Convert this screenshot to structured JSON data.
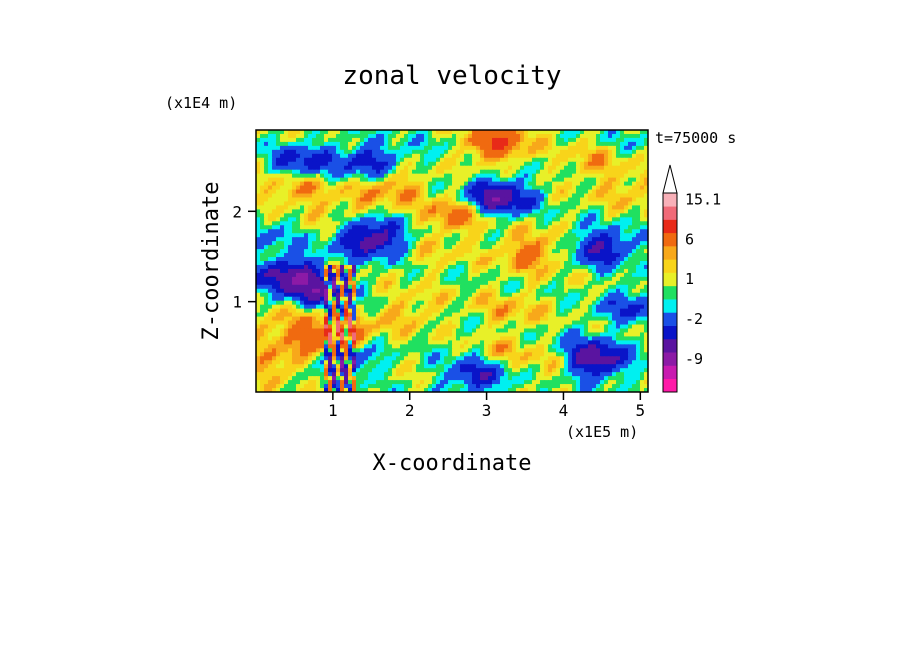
{
  "chart_data": {
    "type": "heatmap",
    "title": "zonal velocity",
    "xlabel": "X-coordinate",
    "ylabel": "Z-coordinate",
    "x_scale_label": "(x1E5 m)",
    "y_scale_label": "(x1E4 m)",
    "time_label": "t=75000 s",
    "xlim": [
      0,
      5.1
    ],
    "ylim": [
      0,
      2.9
    ],
    "x_ticks": [
      {
        "value": 1,
        "label": "1"
      },
      {
        "value": 2,
        "label": "2"
      },
      {
        "value": 3,
        "label": "3"
      },
      {
        "value": 4,
        "label": "4"
      },
      {
        "value": 5,
        "label": "5"
      }
    ],
    "y_ticks": [
      {
        "value": 1,
        "label": "1"
      },
      {
        "value": 2,
        "label": "2"
      }
    ],
    "colorbar": {
      "levels": [
        {
          "color": "#ff1aa8",
          "label": ""
        },
        {
          "color": "#c81ab0",
          "label": ""
        },
        {
          "color": "#8c1aa6",
          "label": "-9"
        },
        {
          "color": "#5a14a0",
          "label": ""
        },
        {
          "color": "#0a14c8",
          "label": ""
        },
        {
          "color": "#1a50e6",
          "label": "-2"
        },
        {
          "color": "#00f0f0",
          "label": ""
        },
        {
          "color": "#20e060",
          "label": ""
        },
        {
          "color": "#e8f028",
          "label": "1"
        },
        {
          "color": "#f8d41a",
          "label": ""
        },
        {
          "color": "#f8a81a",
          "label": ""
        },
        {
          "color": "#f06a10",
          "label": "6"
        },
        {
          "color": "#e82a18",
          "label": ""
        },
        {
          "color": "#f06a78",
          "label": ""
        },
        {
          "color": "#f8b0b8",
          "label": "15.1"
        }
      ]
    },
    "features": [
      {
        "x": 0.6,
        "z": 2.55,
        "value": -5
      },
      {
        "x": 1.5,
        "z": 2.55,
        "value": -5
      },
      {
        "x": 3.15,
        "z": 2.15,
        "value": -8
      },
      {
        "x": 4.5,
        "z": 1.6,
        "value": -6
      },
      {
        "x": 1.5,
        "z": 1.7,
        "value": -8
      },
      {
        "x": 0.45,
        "z": 1.3,
        "value": -7
      },
      {
        "x": 0.75,
        "z": 1.1,
        "value": -6
      },
      {
        "x": 4.9,
        "z": 0.95,
        "value": -4
      },
      {
        "x": 2.6,
        "z": 1.95,
        "value": 4
      },
      {
        "x": 3.1,
        "z": 2.75,
        "value": 6
      },
      {
        "x": 3.6,
        "z": 1.55,
        "value": 4
      },
      {
        "x": 0.5,
        "z": 2.25,
        "value": 3
      },
      {
        "x": 1.8,
        "z": 2.3,
        "value": 3
      },
      {
        "x": 4.4,
        "z": 2.55,
        "value": 2
      },
      {
        "x": 4.9,
        "z": 2.25,
        "value": 2
      },
      {
        "x": 0.3,
        "z": 0.35,
        "value": 3
      },
      {
        "x": 1.05,
        "z": 0.6,
        "value": 8
      },
      {
        "x": 0.4,
        "z": 0.8,
        "value": 3
      },
      {
        "x": 2.0,
        "z": 0.9,
        "value": 2
      },
      {
        "x": 3.9,
        "z": 0.3,
        "value": 2
      },
      {
        "x": 2.9,
        "z": 0.5,
        "value": -1
      },
      {
        "x": 4.2,
        "z": 0.55,
        "value": -1
      },
      {
        "x": 3.3,
        "z": 0.9,
        "value": 2
      },
      {
        "x": 1.35,
        "z": 2.1,
        "value": 1
      },
      {
        "x": 2.3,
        "z": 1.5,
        "value": 1
      },
      {
        "x": 1.0,
        "z": 2.0,
        "value": 1
      },
      {
        "x": 0.2,
        "z": 1.75,
        "value": -2
      },
      {
        "x": 2.45,
        "z": 2.7,
        "value": -1
      },
      {
        "x": 4.9,
        "z": 2.75,
        "value": -1
      },
      {
        "x": 4.7,
        "z": 0.1,
        "value": 0
      },
      {
        "x": 2.9,
        "z": 0.2,
        "value": -6
      },
      {
        "x": 3.1,
        "z": 0.4,
        "value": 3
      },
      {
        "x": 4.4,
        "z": 0.35,
        "value": -8
      },
      {
        "x": 1.15,
        "z": 0.4,
        "value": -6
      }
    ],
    "grid": false
  }
}
